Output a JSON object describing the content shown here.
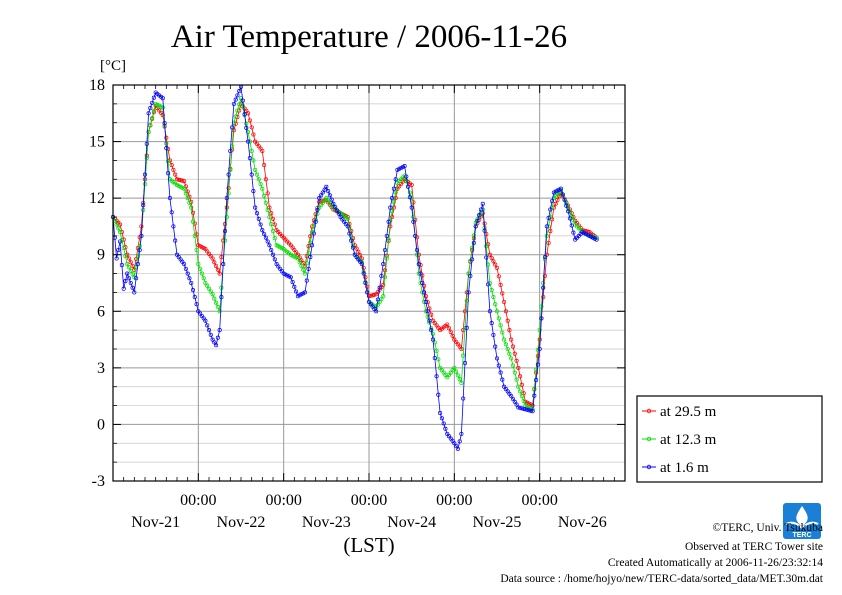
{
  "chart_data": {
    "type": "line",
    "title": "Air Temperature / 2006-11-26",
    "ylabel": "[°C]",
    "xlabel": "(LST)",
    "ylim": [
      -3,
      18
    ],
    "yticks": [
      -3,
      0,
      3,
      6,
      9,
      12,
      15,
      18
    ],
    "xlim_hours": [
      0,
      144
    ],
    "day_labels": [
      "Nov-21",
      "Nov-22",
      "Nov-23",
      "Nov-24",
      "Nov-25",
      "Nov-26"
    ],
    "time_label": "00:00",
    "grid": true,
    "legend_position": "right",
    "series": [
      {
        "name": "at 29.5 m",
        "color": "#ff0000",
        "keypoints": [
          [
            0,
            11.0
          ],
          [
            2,
            10.6
          ],
          [
            4,
            9.0
          ],
          [
            6,
            8.2
          ],
          [
            8,
            10.5
          ],
          [
            10,
            15.5
          ],
          [
            12,
            16.9
          ],
          [
            14,
            16.4
          ],
          [
            16,
            14.0
          ],
          [
            18,
            13.0
          ],
          [
            20,
            12.9
          ],
          [
            22,
            11.8
          ],
          [
            24,
            9.5
          ],
          [
            26,
            9.3
          ],
          [
            28,
            8.8
          ],
          [
            30,
            8.0
          ],
          [
            32,
            11.5
          ],
          [
            34,
            15.6
          ],
          [
            36,
            17.0
          ],
          [
            38,
            16.5
          ],
          [
            40,
            15.0
          ],
          [
            42,
            14.5
          ],
          [
            44,
            11.5
          ],
          [
            46,
            10.3
          ],
          [
            48,
            9.9
          ],
          [
            50,
            9.5
          ],
          [
            52,
            9.0
          ],
          [
            54,
            8.4
          ],
          [
            56,
            10.5
          ],
          [
            58,
            11.8
          ],
          [
            60,
            11.9
          ],
          [
            62,
            11.4
          ],
          [
            64,
            11.2
          ],
          [
            66,
            11.0
          ],
          [
            68,
            9.5
          ],
          [
            70,
            8.8
          ],
          [
            72,
            6.8
          ],
          [
            74,
            6.9
          ],
          [
            76,
            7.4
          ],
          [
            78,
            10.5
          ],
          [
            80,
            12.5
          ],
          [
            82,
            13.0
          ],
          [
            84,
            12.7
          ],
          [
            86,
            9.0
          ],
          [
            88,
            6.8
          ],
          [
            90,
            5.5
          ],
          [
            92,
            5.0
          ],
          [
            94,
            5.3
          ],
          [
            96,
            4.5
          ],
          [
            98,
            4.0
          ],
          [
            100,
            8.0
          ],
          [
            102,
            10.5
          ],
          [
            104,
            11.2
          ],
          [
            106,
            9.0
          ],
          [
            108,
            8.3
          ],
          [
            110,
            6.5
          ],
          [
            112,
            4.5
          ],
          [
            114,
            3.0
          ],
          [
            116,
            1.2
          ],
          [
            118,
            1.0
          ],
          [
            120,
            4.5
          ],
          [
            122,
            9.0
          ],
          [
            124,
            11.5
          ],
          [
            126,
            12.3
          ],
          [
            128,
            11.6
          ],
          [
            130,
            10.8
          ],
          [
            132,
            10.3
          ],
          [
            134,
            10.2
          ],
          [
            136,
            9.9
          ]
        ]
      },
      {
        "name": "at 12.3 m",
        "color": "#00dd00",
        "keypoints": [
          [
            0,
            11.0
          ],
          [
            2,
            10.2
          ],
          [
            4,
            8.5
          ],
          [
            6,
            7.8
          ],
          [
            8,
            10.0
          ],
          [
            10,
            15.5
          ],
          [
            12,
            17.0
          ],
          [
            14,
            16.8
          ],
          [
            16,
            13.0
          ],
          [
            18,
            12.7
          ],
          [
            20,
            12.5
          ],
          [
            22,
            11.5
          ],
          [
            24,
            8.5
          ],
          [
            26,
            7.5
          ],
          [
            28,
            6.9
          ],
          [
            30,
            6.0
          ],
          [
            32,
            11.0
          ],
          [
            34,
            16.0
          ],
          [
            36,
            17.3
          ],
          [
            38,
            15.5
          ],
          [
            40,
            13.5
          ],
          [
            42,
            12.5
          ],
          [
            44,
            11.0
          ],
          [
            46,
            9.5
          ],
          [
            48,
            9.3
          ],
          [
            50,
            9.0
          ],
          [
            52,
            8.8
          ],
          [
            54,
            8.0
          ],
          [
            56,
            10.2
          ],
          [
            58,
            11.5
          ],
          [
            60,
            12.0
          ],
          [
            62,
            11.5
          ],
          [
            64,
            11.2
          ],
          [
            66,
            10.9
          ],
          [
            68,
            9.0
          ],
          [
            70,
            8.6
          ],
          [
            72,
            6.5
          ],
          [
            74,
            6.2
          ],
          [
            76,
            6.8
          ],
          [
            78,
            10.8
          ],
          [
            80,
            12.8
          ],
          [
            82,
            13.2
          ],
          [
            84,
            12.0
          ],
          [
            86,
            8.0
          ],
          [
            88,
            6.0
          ],
          [
            90,
            4.8
          ],
          [
            92,
            3.0
          ],
          [
            94,
            2.5
          ],
          [
            96,
            3.0
          ],
          [
            98,
            2.2
          ],
          [
            100,
            8.0
          ],
          [
            102,
            10.7
          ],
          [
            104,
            11.4
          ],
          [
            106,
            7.5
          ],
          [
            108,
            6.0
          ],
          [
            110,
            4.5
          ],
          [
            112,
            3.5
          ],
          [
            114,
            2.0
          ],
          [
            116,
            1.0
          ],
          [
            118,
            0.8
          ],
          [
            120,
            5.0
          ],
          [
            122,
            10.0
          ],
          [
            124,
            12.0
          ],
          [
            126,
            12.4
          ],
          [
            128,
            11.5
          ],
          [
            130,
            10.6
          ],
          [
            132,
            10.2
          ],
          [
            134,
            10.0
          ],
          [
            136,
            9.9
          ]
        ]
      },
      {
        "name": "at 1.6 m",
        "color": "#0000ff",
        "keypoints": [
          [
            0,
            11.0
          ],
          [
            1,
            8.8
          ],
          [
            2,
            9.7
          ],
          [
            3,
            7.2
          ],
          [
            4,
            8.0
          ],
          [
            5,
            7.5
          ],
          [
            6,
            7.0
          ],
          [
            8,
            10.0
          ],
          [
            10,
            16.5
          ],
          [
            12,
            17.6
          ],
          [
            14,
            17.3
          ],
          [
            16,
            12.0
          ],
          [
            18,
            9.0
          ],
          [
            20,
            8.5
          ],
          [
            22,
            7.5
          ],
          [
            24,
            6.0
          ],
          [
            26,
            5.5
          ],
          [
            28,
            4.5
          ],
          [
            29,
            4.2
          ],
          [
            30,
            5.0
          ],
          [
            32,
            12.0
          ],
          [
            34,
            17.0
          ],
          [
            36,
            17.9
          ],
          [
            38,
            15.0
          ],
          [
            40,
            11.5
          ],
          [
            42,
            10.3
          ],
          [
            44,
            9.5
          ],
          [
            46,
            8.5
          ],
          [
            48,
            8.0
          ],
          [
            50,
            7.8
          ],
          [
            52,
            6.8
          ],
          [
            54,
            7.0
          ],
          [
            56,
            9.5
          ],
          [
            58,
            12.0
          ],
          [
            60,
            12.6
          ],
          [
            62,
            11.7
          ],
          [
            64,
            11.0
          ],
          [
            66,
            10.5
          ],
          [
            68,
            9.0
          ],
          [
            70,
            8.5
          ],
          [
            72,
            6.5
          ],
          [
            74,
            6.0
          ],
          [
            76,
            8.5
          ],
          [
            78,
            11.5
          ],
          [
            80,
            13.5
          ],
          [
            82,
            13.7
          ],
          [
            84,
            11.5
          ],
          [
            86,
            8.5
          ],
          [
            88,
            6.5
          ],
          [
            90,
            4.5
          ],
          [
            92,
            0.6
          ],
          [
            94,
            -0.5
          ],
          [
            96,
            -1.0
          ],
          [
            97,
            -1.3
          ],
          [
            98,
            -0.5
          ],
          [
            100,
            7.0
          ],
          [
            102,
            10.5
          ],
          [
            104,
            11.7
          ],
          [
            106,
            6.0
          ],
          [
            108,
            3.5
          ],
          [
            110,
            2.0
          ],
          [
            112,
            1.5
          ],
          [
            114,
            0.9
          ],
          [
            116,
            0.8
          ],
          [
            118,
            0.7
          ],
          [
            120,
            4.0
          ],
          [
            122,
            10.5
          ],
          [
            124,
            12.3
          ],
          [
            126,
            12.5
          ],
          [
            128,
            11.3
          ],
          [
            130,
            9.8
          ],
          [
            132,
            10.2
          ],
          [
            134,
            10.0
          ],
          [
            136,
            9.8
          ]
        ]
      }
    ]
  },
  "credits": {
    "copyright": "©TERC, Univ. Tsukuba",
    "observed": "Observed at TERC Tower site",
    "created": "Created Automatically at 2006-11-26/23:32:14",
    "source": "Data source : /home/hojyo/new/TERC-data/sorted_data/MET.30m.dat"
  },
  "logo": {
    "text": "TERC",
    "color": "#1a7fd6"
  }
}
